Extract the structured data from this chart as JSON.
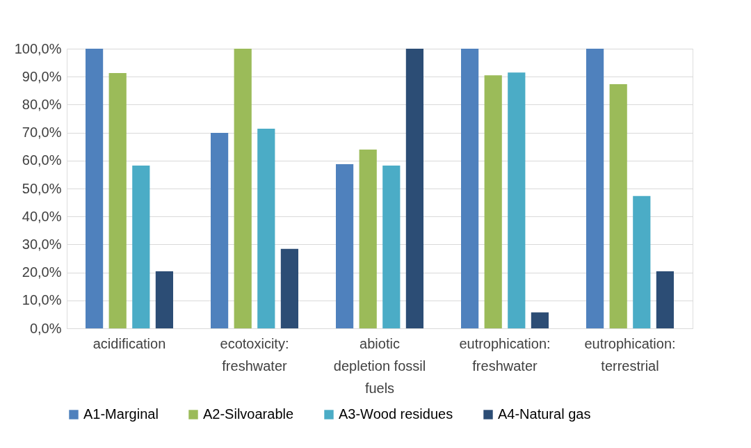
{
  "chart_data": {
    "type": "bar",
    "categories": [
      "acidification",
      "ecotoxicity: freshwater",
      "abiotic depletion fossil fuels",
      "eutrophication: freshwater",
      "eutrophication: terrestrial"
    ],
    "series": [
      {
        "name": "A1-Marginal",
        "color": "#4f81bd",
        "values": [
          100,
          69.9,
          58.7,
          100,
          100
        ]
      },
      {
        "name": "A2-Silvoarable",
        "color": "#9bbb59",
        "values": [
          91.3,
          100,
          63.9,
          90.5,
          87.3
        ]
      },
      {
        "name": "A3-Wood residues",
        "color": "#4bacc6",
        "values": [
          58.2,
          71.4,
          58.2,
          91.5,
          47.3
        ]
      },
      {
        "name": "A4-Natural gas",
        "color": "#2c4d75",
        "values": [
          20.4,
          28.4,
          100,
          5.7,
          20.4
        ]
      }
    ],
    "ylim": [
      0,
      100
    ],
    "yticks": [
      {
        "value": 0,
        "label": "0,0%"
      },
      {
        "value": 10,
        "label": "10,0%"
      },
      {
        "value": 20,
        "label": "20,0%"
      },
      {
        "value": 30,
        "label": "30,0%"
      },
      {
        "value": 40,
        "label": "40,0%"
      },
      {
        "value": 50,
        "label": "50,0%"
      },
      {
        "value": 60,
        "label": "60,0%"
      },
      {
        "value": 70,
        "label": "70,0%"
      },
      {
        "value": 80,
        "label": "80,0%"
      },
      {
        "value": 90,
        "label": "90,0%"
      },
      {
        "value": 100,
        "label": "100,0%"
      }
    ],
    "grid": "y",
    "legend": "bottom"
  }
}
